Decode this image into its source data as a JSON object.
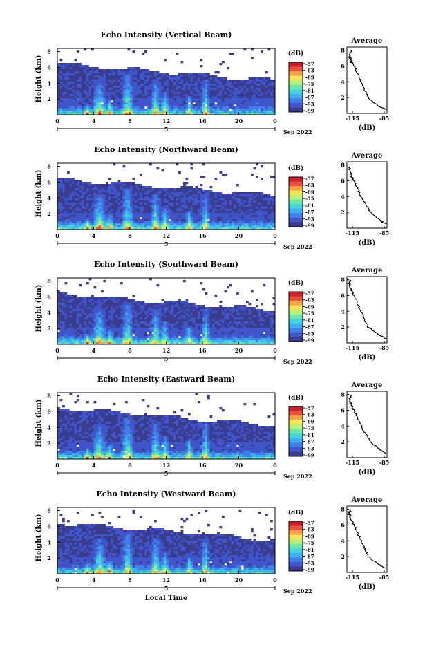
{
  "colors": {
    "background": "#ffffff",
    "axis": "#000000",
    "colormap": [
      "#3a3d8f",
      "#3f55c9",
      "#3f7fe6",
      "#3eaef0",
      "#44d3d8",
      "#6fe6a8",
      "#b9ef7a",
      "#f3e35a",
      "#f7a348",
      "#e9503b",
      "#c8222d"
    ]
  },
  "common": {
    "xticks": [
      "0",
      "4",
      "8",
      "12",
      "16",
      "20",
      "0"
    ],
    "date_marker": "5",
    "date_label": "Sep 2022",
    "colorbar_unit": "(dB)",
    "colorbar_ticks": [
      "-57",
      "-63",
      "-69",
      "-75",
      "-81",
      "-87",
      "-93",
      "-99"
    ],
    "avg_title": "Average",
    "avg_xlabel": "(dB)",
    "avg_xticks": [
      "-115",
      "-85"
    ],
    "yticks": [
      "2",
      "4",
      "6",
      "8"
    ],
    "ylabel": "Height (km)",
    "xlabel": "Local Time"
  },
  "chart_data": [
    {
      "type": "heatmap",
      "title": "Echo Intensity (Vertical Beam)",
      "ylabel": "Height (km)",
      "x_range_hours": [
        0,
        24
      ],
      "ylim_km": [
        0,
        8
      ],
      "colorbar_range_db": [
        -99,
        -57
      ],
      "average_profile": {
        "title": "Average",
        "xlabel": "(dB)",
        "xlim_db": [
          -118,
          -84
        ],
        "height_km": [
          0.5,
          1,
          2,
          3,
          4,
          5,
          6,
          6.5,
          7,
          7.5,
          8
        ],
        "intensity_db": [
          -85,
          -92,
          -100,
          -103,
          -106,
          -109,
          -112,
          -114,
          -115,
          -116,
          -114
        ]
      }
    },
    {
      "type": "heatmap",
      "title": "Echo Intensity (Northward Beam)",
      "ylabel": "Height (km)",
      "x_range_hours": [
        0,
        24
      ],
      "ylim_km": [
        0,
        8
      ],
      "colorbar_range_db": [
        -99,
        -57
      ],
      "average_profile": {
        "title": "Average",
        "xlabel": "(dB)",
        "xlim_db": [
          -118,
          -84
        ],
        "height_km": [
          0.5,
          1,
          2,
          3,
          4,
          5,
          6,
          6.5,
          7,
          7.5,
          8
        ],
        "intensity_db": [
          -85,
          -90,
          -98,
          -102,
          -106,
          -109,
          -112,
          -114,
          -115,
          -116,
          -115
        ]
      }
    },
    {
      "type": "heatmap",
      "title": "Echo Intensity (Southward Beam)",
      "ylabel": "Height (km)",
      "x_range_hours": [
        0,
        24
      ],
      "ylim_km": [
        0,
        8
      ],
      "colorbar_range_db": [
        -99,
        -57
      ],
      "average_profile": {
        "title": "Average",
        "xlabel": "(dB)",
        "xlim_db": [
          -118,
          -84
        ],
        "height_km": [
          0.5,
          1,
          2,
          3,
          4,
          5,
          6,
          6.5,
          7,
          7.5,
          8
        ],
        "intensity_db": [
          -84,
          -91,
          -100,
          -103,
          -106,
          -109,
          -112,
          -114,
          -115,
          -116,
          -115
        ]
      }
    },
    {
      "type": "heatmap",
      "title": "Echo Intensity (Eastward Beam)",
      "ylabel": "Height (km)",
      "x_range_hours": [
        0,
        24
      ],
      "ylim_km": [
        0,
        8
      ],
      "colorbar_range_db": [
        -99,
        -57
      ],
      "average_profile": {
        "title": "Average",
        "xlabel": "(dB)",
        "xlim_db": [
          -118,
          -84
        ],
        "height_km": [
          0.5,
          1,
          2,
          3,
          4,
          5,
          6,
          6.5,
          7,
          7.5,
          8
        ],
        "intensity_db": [
          -85,
          -90,
          -98,
          -102,
          -106,
          -109,
          -112,
          -114,
          -115,
          -116,
          -114
        ]
      }
    },
    {
      "type": "heatmap",
      "title": "Echo Intensity (Westward Beam)",
      "ylabel": "Height (km)",
      "xlabel": "Local Time",
      "x_range_hours": [
        0,
        24
      ],
      "ylim_km": [
        0,
        8
      ],
      "colorbar_range_db": [
        -99,
        -57
      ],
      "average_profile": {
        "title": "Average",
        "xlabel": "(dB)",
        "xlim_db": [
          -118,
          -84
        ],
        "height_km": [
          0.5,
          1,
          2,
          3,
          4,
          5,
          6,
          6.5,
          7,
          7.5,
          8
        ],
        "intensity_db": [
          -85,
          -91,
          -100,
          -103,
          -106,
          -109,
          -112,
          -114,
          -115,
          -116,
          -115
        ]
      }
    }
  ]
}
